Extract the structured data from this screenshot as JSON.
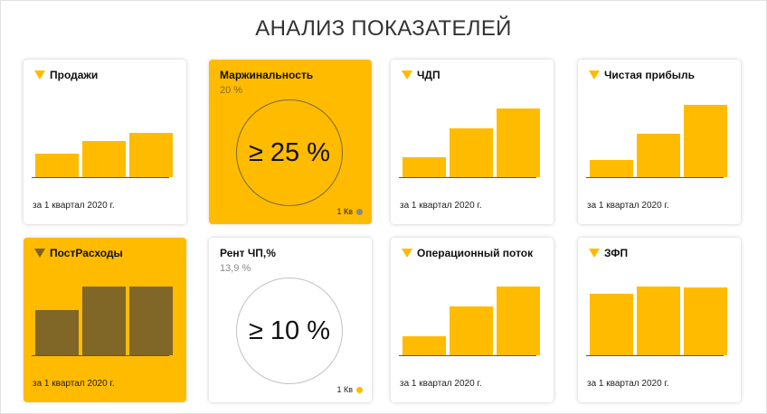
{
  "page": {
    "title": "АНАЛИЗ ПОКАЗАТЕЛЕЙ"
  },
  "colors": {
    "accent": "#ffbb00",
    "dark_bar": "#806627",
    "grey_dot": "#888888"
  },
  "cards": [
    {
      "kind": "bars",
      "title": "Продажи",
      "period": "за 1 квартал 2020 г.",
      "values": [
        0.33,
        0.5,
        0.61
      ]
    },
    {
      "kind": "kpi",
      "title": "Маржинальность",
      "subtitle": "20 %",
      "target": "≥ 25 %",
      "legend": "1 Кв",
      "dot_color": "#888888"
    },
    {
      "kind": "bars",
      "title": "ЧДП",
      "period": "за 1 квартал 2020 г.",
      "values": [
        0.27,
        0.67,
        0.95
      ]
    },
    {
      "kind": "bars",
      "title": "Чистая прибыль",
      "period": "за 1 квартал 2020 г.",
      "values": [
        0.24,
        0.6,
        1.0
      ]
    },
    {
      "kind": "bars",
      "title": "ПостРасходы",
      "period": "за 1 квартал 2020 г.",
      "values": [
        0.62,
        0.95,
        0.95
      ]
    },
    {
      "kind": "kpi",
      "title": "Рент ЧП,%",
      "subtitle": "13,9 %",
      "target": "≥ 10 %",
      "legend": "1 Кв",
      "dot_color": "#ffbb00"
    },
    {
      "kind": "bars",
      "title": "Операционный поток",
      "period": "за 1 квартал 2020 г.",
      "values": [
        0.26,
        0.67,
        0.95
      ]
    },
    {
      "kind": "bars",
      "title": "ЗФП",
      "period": "за 1 квартал 2020 г.",
      "values": [
        0.85,
        0.95,
        0.94
      ]
    }
  ]
}
